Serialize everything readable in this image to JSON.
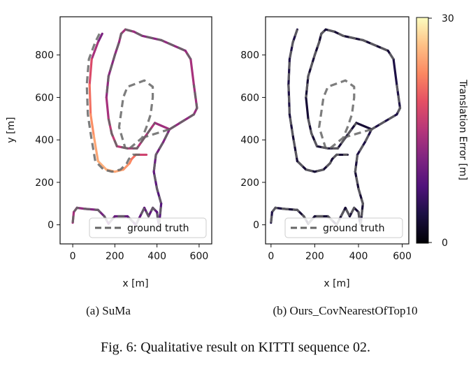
{
  "figure": {
    "caption": "Fig. 6: Qualitative result on KITTI sequence 02."
  },
  "colorbar": {
    "label": "Translation Error [m]",
    "min": 0,
    "max": 30,
    "min_label": "0",
    "max_label": "30",
    "colormap": "magma"
  },
  "chart_data": [
    {
      "type": "line",
      "subcaption": "(a)  SuMa",
      "xlabel": "x [m]",
      "ylabel": "y [m]",
      "xlim": [
        -60,
        660
      ],
      "ylim": [
        -90,
        980
      ],
      "xticks": [
        0,
        200,
        400,
        600
      ],
      "yticks": [
        0,
        200,
        400,
        600,
        800
      ],
      "legend": {
        "label": "ground truth",
        "position": "lower-right"
      },
      "ground_truth": [
        [
          0,
          10
        ],
        [
          5,
          60
        ],
        [
          20,
          80
        ],
        [
          60,
          75
        ],
        [
          120,
          70
        ],
        [
          150,
          40
        ],
        [
          170,
          5
        ],
        [
          200,
          40
        ],
        [
          260,
          40
        ],
        [
          300,
          0
        ],
        [
          320,
          40
        ],
        [
          340,
          80
        ],
        [
          360,
          40
        ],
        [
          380,
          80
        ],
        [
          400,
          60
        ],
        [
          405,
          20
        ],
        [
          410,
          0
        ],
        [
          420,
          100
        ],
        [
          400,
          170
        ],
        [
          385,
          250
        ],
        [
          395,
          330
        ],
        [
          430,
          390
        ],
        [
          460,
          450
        ],
        [
          575,
          520
        ],
        [
          590,
          550
        ],
        [
          575,
          660
        ],
        [
          560,
          780
        ],
        [
          535,
          820
        ],
        [
          420,
          870
        ],
        [
          330,
          890
        ],
        [
          290,
          910
        ],
        [
          250,
          920
        ],
        [
          230,
          900
        ],
        [
          220,
          860
        ],
        [
          200,
          800
        ],
        [
          170,
          700
        ],
        [
          160,
          600
        ],
        [
          170,
          500
        ],
        [
          185,
          430
        ],
        [
          210,
          370
        ],
        [
          260,
          360
        ],
        [
          305,
          360
        ],
        [
          340,
          410
        ],
        [
          390,
          480
        ],
        [
          460,
          450
        ],
        [
          330,
          410
        ],
        [
          270,
          360
        ],
        [
          330,
          410
        ],
        [
          350,
          460
        ],
        [
          370,
          520
        ],
        [
          380,
          600
        ],
        [
          380,
          650
        ],
        [
          340,
          680
        ],
        [
          260,
          650
        ],
        [
          240,
          600
        ],
        [
          230,
          530
        ],
        [
          220,
          460
        ],
        [
          250,
          360
        ]
      ],
      "gt_breaks": [
        26,
        37,
        44,
        46
      ],
      "trajectory": {
        "x": [
          0,
          5,
          20,
          60,
          120,
          150,
          170,
          200,
          260,
          300,
          320,
          340,
          360,
          380,
          400,
          405,
          410,
          420,
          400,
          385,
          395,
          430,
          460,
          575,
          590,
          575,
          560,
          535,
          420,
          330,
          290,
          250,
          230,
          220,
          200,
          170,
          160,
          170,
          185,
          210,
          260,
          305,
          340,
          390,
          460
        ],
        "y": [
          10,
          60,
          80,
          75,
          70,
          40,
          5,
          40,
          40,
          0,
          40,
          80,
          40,
          80,
          60,
          20,
          0,
          100,
          170,
          250,
          330,
          390,
          450,
          520,
          550,
          660,
          780,
          820,
          870,
          890,
          910,
          920,
          900,
          860,
          800,
          700,
          600,
          500,
          430,
          370,
          360,
          360,
          410,
          480,
          450
        ],
        "error": [
          14,
          14,
          13,
          12,
          11,
          10,
          10,
          10,
          9,
          9,
          9,
          9,
          9,
          9,
          9,
          8,
          8,
          8,
          8,
          9,
          10,
          11,
          12,
          13,
          13,
          14,
          14,
          13,
          12,
          12,
          13,
          14,
          14,
          13,
          12,
          12,
          13,
          15,
          16,
          16,
          15,
          15,
          15,
          14,
          13
        ]
      },
      "inner_loop": {
        "x": [
          140,
          120,
          90,
          80,
          85,
          100,
          120,
          160,
          200,
          240,
          270,
          280,
          300,
          320,
          350
        ],
        "y": [
          900,
          860,
          780,
          660,
          520,
          420,
          300,
          260,
          250,
          260,
          290,
          310,
          330,
          330,
          330
        ],
        "error": [
          10,
          12,
          16,
          20,
          22,
          24,
          25,
          25,
          25,
          24,
          23,
          22,
          20,
          18,
          16
        ]
      }
    },
    {
      "type": "line",
      "subcaption": "(b)  Ours_CovNearestOfTop10",
      "xlabel": "x [m]",
      "ylabel": "",
      "xlim": [
        -25,
        630
      ],
      "ylim": [
        -90,
        980
      ],
      "xticks": [
        0,
        200,
        400,
        600
      ],
      "yticks": [
        0,
        200,
        400,
        600,
        800
      ],
      "legend": {
        "label": "ground truth",
        "position": "lower-right"
      },
      "trajectory": {
        "x": [
          0,
          5,
          20,
          60,
          120,
          150,
          170,
          200,
          260,
          300,
          320,
          340,
          360,
          380,
          400,
          405,
          410,
          420,
          400,
          385,
          395,
          430,
          460,
          575,
          590,
          575,
          560,
          535,
          420,
          330,
          290,
          250,
          230,
          220,
          200,
          170,
          160,
          170,
          185,
          210,
          260,
          305,
          340,
          390,
          460
        ],
        "y": [
          10,
          60,
          80,
          75,
          70,
          40,
          5,
          40,
          40,
          0,
          40,
          80,
          40,
          80,
          60,
          20,
          0,
          100,
          170,
          250,
          330,
          390,
          450,
          520,
          550,
          660,
          780,
          820,
          870,
          890,
          910,
          920,
          900,
          860,
          800,
          700,
          600,
          500,
          430,
          370,
          360,
          360,
          410,
          480,
          450
        ],
        "error": [
          4,
          4,
          4,
          3,
          3,
          3,
          3,
          3,
          3,
          3,
          3,
          3,
          3,
          3,
          3,
          3,
          3,
          3,
          3,
          3,
          4,
          4,
          4,
          4,
          4,
          4,
          4,
          3,
          3,
          3,
          3,
          3,
          3,
          3,
          3,
          3,
          3,
          3,
          3,
          3,
          3,
          3,
          3,
          3,
          3
        ]
      },
      "inner_loop": {
        "x": [
          120,
          100,
          85,
          80,
          85,
          100,
          120,
          160,
          200,
          240,
          270,
          280,
          300,
          320,
          350
        ],
        "y": [
          920,
          860,
          780,
          660,
          520,
          420,
          300,
          260,
          250,
          260,
          290,
          310,
          330,
          330,
          330
        ],
        "error": [
          4,
          4,
          4,
          4,
          4,
          3,
          3,
          3,
          3,
          3,
          3,
          3,
          3,
          3,
          3
        ]
      }
    }
  ]
}
